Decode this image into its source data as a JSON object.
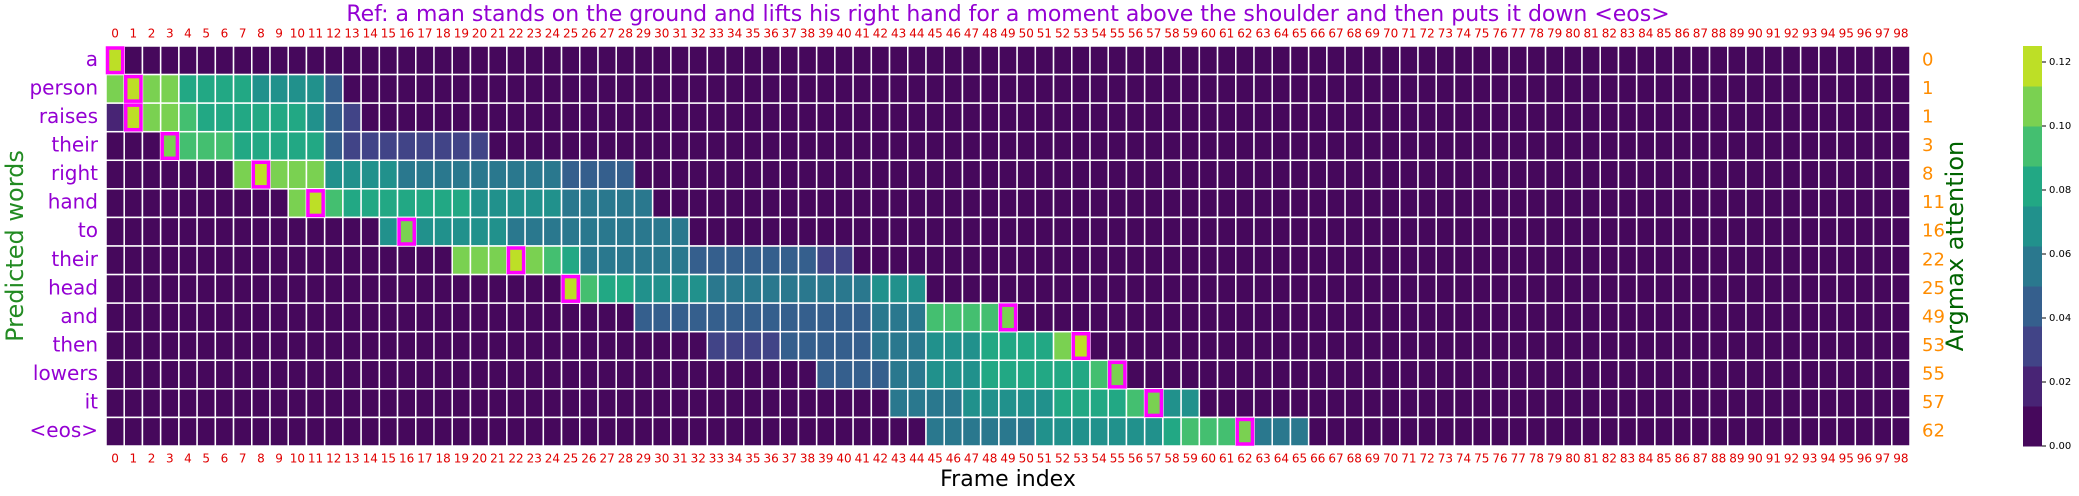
{
  "chart_data": {
    "type": "heatmap",
    "title": "Ref: a man stands on the ground and lifts his right hand for a moment above the shoulder and then puts it down <eos>",
    "x_label": "Frame index",
    "y_label": "Predicted words",
    "y2_label": "Argmax attention",
    "x": [
      0,
      1,
      2,
      3,
      4,
      5,
      6,
      7,
      8,
      9,
      10,
      11,
      12,
      13,
      14,
      15,
      16,
      17,
      18,
      19,
      20,
      21,
      22,
      23,
      24,
      25,
      26,
      27,
      28,
      29,
      30,
      31,
      32,
      33,
      34,
      35,
      36,
      37,
      38,
      39,
      40,
      41,
      42,
      43,
      44,
      45,
      46,
      47,
      48,
      49,
      50,
      51,
      52,
      53,
      54,
      55,
      56,
      57,
      58,
      59,
      60,
      61,
      62,
      63,
      64,
      65,
      66,
      67,
      68,
      69,
      70,
      71,
      72,
      73,
      74,
      75,
      76,
      77,
      78,
      79,
      80,
      81,
      82,
      83,
      84,
      85,
      86,
      87,
      88,
      89,
      90,
      91,
      92,
      93,
      94,
      95,
      96,
      97,
      98
    ],
    "categories": [
      "a",
      "person",
      "raises",
      "their",
      "right",
      "hand",
      "to",
      "their",
      "head",
      "and",
      "then",
      "lowers",
      "it",
      "<eos>"
    ],
    "argmax": [
      0,
      1,
      1,
      3,
      8,
      11,
      16,
      22,
      25,
      49,
      53,
      55,
      57,
      62
    ],
    "values": [
      [
        0.12,
        0,
        0,
        0,
        0,
        0,
        0,
        0,
        0,
        0,
        0,
        0,
        0,
        0,
        0,
        0,
        0,
        0,
        0,
        0,
        0,
        0,
        0,
        0,
        0,
        0,
        0,
        0,
        0,
        0,
        0,
        0,
        0,
        0,
        0,
        0,
        0,
        0,
        0,
        0,
        0,
        0,
        0,
        0,
        0,
        0,
        0,
        0,
        0,
        0,
        0,
        0,
        0,
        0,
        0,
        0,
        0,
        0,
        0,
        0,
        0,
        0,
        0,
        0,
        0,
        0,
        0,
        0,
        0,
        0,
        0,
        0,
        0,
        0,
        0,
        0,
        0,
        0,
        0,
        0,
        0,
        0,
        0,
        0,
        0,
        0,
        0,
        0,
        0,
        0,
        0,
        0,
        0,
        0,
        0,
        0,
        0,
        0,
        0
      ],
      [
        0.11,
        0.12,
        0.11,
        0.11,
        0.08,
        0.08,
        0.075,
        0.075,
        0.07,
        0.07,
        0.065,
        0.065,
        0.04,
        0,
        0,
        0,
        0,
        0,
        0,
        0,
        0,
        0,
        0,
        0,
        0,
        0,
        0,
        0,
        0,
        0,
        0,
        0,
        0,
        0,
        0,
        0,
        0,
        0,
        0,
        0,
        0,
        0,
        0,
        0,
        0,
        0,
        0,
        0,
        0,
        0,
        0,
        0,
        0,
        0,
        0,
        0,
        0,
        0,
        0,
        0,
        0,
        0,
        0,
        0,
        0,
        0,
        0,
        0,
        0,
        0,
        0,
        0,
        0,
        0,
        0,
        0,
        0,
        0,
        0,
        0,
        0,
        0,
        0,
        0,
        0,
        0,
        0,
        0,
        0,
        0,
        0,
        0,
        0,
        0,
        0,
        0,
        0,
        0,
        0
      ],
      [
        0.02,
        0.12,
        0.11,
        0.1,
        0.09,
        0.085,
        0.085,
        0.08,
        0.08,
        0.075,
        0.075,
        0.07,
        0.04,
        0.03,
        0,
        0,
        0,
        0,
        0,
        0,
        0,
        0,
        0,
        0,
        0,
        0,
        0,
        0,
        0,
        0,
        0,
        0,
        0,
        0,
        0,
        0,
        0,
        0,
        0,
        0,
        0,
        0,
        0,
        0,
        0,
        0,
        0,
        0,
        0,
        0,
        0,
        0,
        0,
        0,
        0,
        0,
        0,
        0,
        0,
        0,
        0,
        0,
        0,
        0,
        0,
        0,
        0,
        0,
        0,
        0,
        0,
        0,
        0,
        0,
        0,
        0,
        0,
        0,
        0,
        0,
        0,
        0,
        0,
        0,
        0,
        0,
        0,
        0,
        0,
        0,
        0,
        0,
        0,
        0,
        0,
        0,
        0,
        0,
        0
      ],
      [
        0,
        0,
        0,
        0.1,
        0.09,
        0.09,
        0.09,
        0.085,
        0.085,
        0.085,
        0.08,
        0.08,
        0.04,
        0.035,
        0.035,
        0.035,
        0.03,
        0.03,
        0.03,
        0.03,
        0.03,
        0,
        0,
        0,
        0,
        0,
        0,
        0,
        0,
        0,
        0,
        0,
        0,
        0,
        0,
        0,
        0,
        0,
        0,
        0,
        0,
        0,
        0,
        0,
        0,
        0,
        0,
        0,
        0,
        0,
        0,
        0,
        0,
        0,
        0,
        0,
        0,
        0,
        0,
        0,
        0,
        0,
        0,
        0,
        0,
        0,
        0,
        0,
        0,
        0,
        0,
        0,
        0,
        0,
        0,
        0,
        0,
        0,
        0,
        0,
        0,
        0,
        0,
        0,
        0,
        0,
        0,
        0,
        0,
        0,
        0,
        0,
        0,
        0,
        0,
        0,
        0,
        0,
        0
      ],
      [
        0,
        0,
        0,
        0,
        0,
        0,
        0,
        0.11,
        0.12,
        0.11,
        0.11,
        0.1,
        0.07,
        0.07,
        0.065,
        0.065,
        0.06,
        0.06,
        0.06,
        0.055,
        0.055,
        0.055,
        0.05,
        0.05,
        0.05,
        0.045,
        0.045,
        0.045,
        0.045,
        0,
        0,
        0,
        0,
        0,
        0,
        0,
        0,
        0,
        0,
        0,
        0,
        0,
        0,
        0,
        0,
        0,
        0,
        0,
        0,
        0,
        0,
        0,
        0,
        0,
        0,
        0,
        0,
        0,
        0,
        0,
        0,
        0,
        0,
        0,
        0,
        0,
        0,
        0,
        0,
        0,
        0,
        0,
        0,
        0,
        0,
        0,
        0,
        0,
        0,
        0,
        0,
        0,
        0,
        0,
        0,
        0,
        0,
        0,
        0,
        0,
        0,
        0,
        0,
        0,
        0,
        0,
        0,
        0,
        0
      ],
      [
        0,
        0,
        0,
        0,
        0,
        0,
        0,
        0,
        0,
        0,
        0.11,
        0.12,
        0.09,
        0.085,
        0.085,
        0.08,
        0.08,
        0.08,
        0.075,
        0.075,
        0.07,
        0.07,
        0.07,
        0.065,
        0.065,
        0.06,
        0.06,
        0.06,
        0.055,
        0.055,
        0,
        0,
        0,
        0,
        0,
        0,
        0,
        0,
        0,
        0,
        0,
        0,
        0,
        0,
        0,
        0,
        0,
        0,
        0,
        0,
        0,
        0,
        0,
        0,
        0,
        0,
        0,
        0,
        0,
        0,
        0,
        0,
        0,
        0,
        0,
        0,
        0,
        0,
        0,
        0,
        0,
        0,
        0,
        0,
        0,
        0,
        0,
        0,
        0,
        0,
        0,
        0,
        0,
        0,
        0,
        0,
        0,
        0,
        0,
        0,
        0,
        0,
        0,
        0,
        0,
        0,
        0,
        0,
        0
      ],
      [
        0,
        0,
        0,
        0,
        0,
        0,
        0,
        0,
        0,
        0,
        0,
        0,
        0,
        0,
        0,
        0.07,
        0.11,
        0.07,
        0.07,
        0.065,
        0.065,
        0.065,
        0.06,
        0.06,
        0.06,
        0.06,
        0.055,
        0.055,
        0.055,
        0.05,
        0.05,
        0.05,
        0,
        0,
        0,
        0,
        0,
        0,
        0,
        0,
        0,
        0,
        0,
        0,
        0,
        0,
        0,
        0,
        0,
        0,
        0,
        0,
        0,
        0,
        0,
        0,
        0,
        0,
        0,
        0,
        0,
        0,
        0,
        0,
        0,
        0,
        0,
        0,
        0,
        0,
        0,
        0,
        0,
        0,
        0,
        0,
        0,
        0,
        0,
        0,
        0,
        0,
        0,
        0,
        0,
        0,
        0,
        0,
        0,
        0,
        0,
        0,
        0,
        0,
        0,
        0,
        0,
        0,
        0
      ],
      [
        0,
        0,
        0,
        0,
        0,
        0,
        0,
        0,
        0,
        0,
        0,
        0,
        0,
        0,
        0,
        0,
        0,
        0,
        0,
        0.11,
        0.11,
        0.11,
        0.12,
        0.1,
        0.09,
        0.085,
        0.06,
        0.055,
        0.055,
        0.05,
        0.05,
        0.05,
        0.045,
        0.045,
        0.045,
        0.04,
        0.04,
        0.04,
        0.04,
        0.035,
        0.035,
        0,
        0,
        0,
        0,
        0,
        0,
        0,
        0,
        0,
        0,
        0,
        0,
        0,
        0,
        0,
        0,
        0,
        0,
        0,
        0,
        0,
        0,
        0,
        0,
        0,
        0,
        0,
        0,
        0,
        0,
        0,
        0,
        0,
        0,
        0,
        0,
        0,
        0,
        0,
        0,
        0,
        0,
        0,
        0,
        0,
        0,
        0,
        0,
        0,
        0,
        0,
        0,
        0,
        0,
        0,
        0,
        0,
        0
      ],
      [
        0,
        0,
        0,
        0,
        0,
        0,
        0,
        0,
        0,
        0,
        0,
        0,
        0,
        0,
        0,
        0,
        0,
        0,
        0,
        0,
        0,
        0,
        0,
        0,
        0,
        0.12,
        0.09,
        0.085,
        0.085,
        0.07,
        0.065,
        0.065,
        0.065,
        0.06,
        0.06,
        0.06,
        0.06,
        0.055,
        0.055,
        0.055,
        0.06,
        0.06,
        0.065,
        0.065,
        0.07,
        0,
        0,
        0,
        0,
        0,
        0,
        0,
        0,
        0,
        0,
        0,
        0,
        0,
        0,
        0,
        0,
        0,
        0,
        0,
        0,
        0,
        0,
        0,
        0,
        0,
        0,
        0,
        0,
        0,
        0,
        0,
        0,
        0,
        0,
        0,
        0,
        0,
        0,
        0,
        0,
        0,
        0,
        0,
        0,
        0,
        0,
        0,
        0,
        0,
        0,
        0,
        0,
        0,
        0
      ],
      [
        0,
        0,
        0,
        0,
        0,
        0,
        0,
        0,
        0,
        0,
        0,
        0,
        0,
        0,
        0,
        0,
        0,
        0,
        0,
        0,
        0,
        0,
        0,
        0,
        0,
        0,
        0,
        0,
        0,
        0.04,
        0.04,
        0.04,
        0.04,
        0.04,
        0.04,
        0.04,
        0.04,
        0.04,
        0.04,
        0.04,
        0.045,
        0.045,
        0.05,
        0.05,
        0.05,
        0.09,
        0.09,
        0.095,
        0.095,
        0.11,
        0,
        0,
        0,
        0,
        0,
        0,
        0,
        0,
        0,
        0,
        0,
        0,
        0,
        0,
        0,
        0,
        0,
        0,
        0,
        0,
        0,
        0,
        0,
        0,
        0,
        0,
        0,
        0,
        0,
        0,
        0,
        0,
        0,
        0,
        0,
        0,
        0,
        0,
        0,
        0,
        0,
        0,
        0,
        0,
        0,
        0,
        0,
        0,
        0
      ],
      [
        0,
        0,
        0,
        0,
        0,
        0,
        0,
        0,
        0,
        0,
        0,
        0,
        0,
        0,
        0,
        0,
        0,
        0,
        0,
        0,
        0,
        0,
        0,
        0,
        0,
        0,
        0,
        0,
        0,
        0,
        0,
        0,
        0,
        0.035,
        0.035,
        0.035,
        0.035,
        0.04,
        0.04,
        0.04,
        0.045,
        0.045,
        0.05,
        0.05,
        0.06,
        0.065,
        0.07,
        0.07,
        0.075,
        0.075,
        0.08,
        0.085,
        0.11,
        0.12,
        0,
        0,
        0,
        0,
        0,
        0,
        0,
        0,
        0,
        0,
        0,
        0,
        0,
        0,
        0,
        0,
        0,
        0,
        0,
        0,
        0,
        0,
        0,
        0,
        0,
        0,
        0,
        0,
        0,
        0,
        0,
        0,
        0,
        0,
        0,
        0,
        0,
        0,
        0,
        0,
        0,
        0,
        0,
        0,
        0
      ],
      [
        0,
        0,
        0,
        0,
        0,
        0,
        0,
        0,
        0,
        0,
        0,
        0,
        0,
        0,
        0,
        0,
        0,
        0,
        0,
        0,
        0,
        0,
        0,
        0,
        0,
        0,
        0,
        0,
        0,
        0,
        0,
        0,
        0,
        0,
        0,
        0,
        0,
        0,
        0,
        0.04,
        0.04,
        0.045,
        0.045,
        0.05,
        0.05,
        0.065,
        0.07,
        0.07,
        0.075,
        0.075,
        0.08,
        0.08,
        0.085,
        0.085,
        0.09,
        0.11,
        0,
        0,
        0,
        0,
        0,
        0,
        0,
        0,
        0,
        0,
        0,
        0,
        0,
        0,
        0,
        0,
        0,
        0,
        0,
        0,
        0,
        0,
        0,
        0,
        0,
        0,
        0,
        0,
        0,
        0,
        0,
        0,
        0,
        0,
        0,
        0,
        0,
        0,
        0,
        0,
        0,
        0,
        0
      ],
      [
        0,
        0,
        0,
        0,
        0,
        0,
        0,
        0,
        0,
        0,
        0,
        0,
        0,
        0,
        0,
        0,
        0,
        0,
        0,
        0,
        0,
        0,
        0,
        0,
        0,
        0,
        0,
        0,
        0,
        0,
        0,
        0,
        0,
        0,
        0,
        0,
        0,
        0,
        0,
        0,
        0,
        0,
        0,
        0.05,
        0.05,
        0.06,
        0.06,
        0.065,
        0.065,
        0.065,
        0.07,
        0.07,
        0.08,
        0.08,
        0.085,
        0.085,
        0.09,
        0.11,
        0.07,
        0.07,
        0,
        0,
        0,
        0,
        0,
        0,
        0,
        0,
        0,
        0,
        0,
        0,
        0,
        0,
        0,
        0,
        0,
        0,
        0,
        0,
        0,
        0,
        0,
        0,
        0,
        0,
        0,
        0,
        0,
        0,
        0,
        0,
        0,
        0,
        0,
        0,
        0,
        0,
        0
      ],
      [
        0,
        0,
        0,
        0,
        0,
        0,
        0,
        0,
        0,
        0,
        0,
        0,
        0,
        0,
        0,
        0,
        0,
        0,
        0,
        0,
        0,
        0,
        0,
        0,
        0,
        0,
        0,
        0,
        0,
        0,
        0,
        0,
        0,
        0,
        0,
        0,
        0,
        0,
        0,
        0,
        0,
        0,
        0,
        0,
        0,
        0.055,
        0.055,
        0.06,
        0.06,
        0.06,
        0.06,
        0.065,
        0.065,
        0.065,
        0.07,
        0.07,
        0.07,
        0.07,
        0.075,
        0.09,
        0.09,
        0.095,
        0.11,
        0.06,
        0.06,
        0.06,
        0,
        0,
        0,
        0,
        0,
        0,
        0,
        0,
        0,
        0,
        0,
        0,
        0,
        0,
        0,
        0,
        0,
        0,
        0,
        0,
        0,
        0,
        0,
        0,
        0,
        0,
        0,
        0,
        0,
        0,
        0,
        0,
        0
      ]
    ],
    "colorbar": {
      "lim": [
        0,
        0.125
      ],
      "colors": [
        "#46085c",
        "#482475",
        "#414487",
        "#355f8d",
        "#2a788e",
        "#21918c",
        "#22a884",
        "#44bf70",
        "#7ad151",
        "#bddf26"
      ],
      "ticks": [
        {
          "value": 0,
          "label": "0.00"
        },
        {
          "value": 0.02,
          "label": "0.02"
        },
        {
          "value": 0.04,
          "label": "0.04"
        },
        {
          "value": 0.06,
          "label": "0.06"
        },
        {
          "value": 0.08,
          "label": "0.08"
        },
        {
          "value": 0.1,
          "label": "0.10"
        },
        {
          "value": 0.12,
          "label": "0.12"
        }
      ]
    },
    "highlight_color": "#ff00ff"
  }
}
